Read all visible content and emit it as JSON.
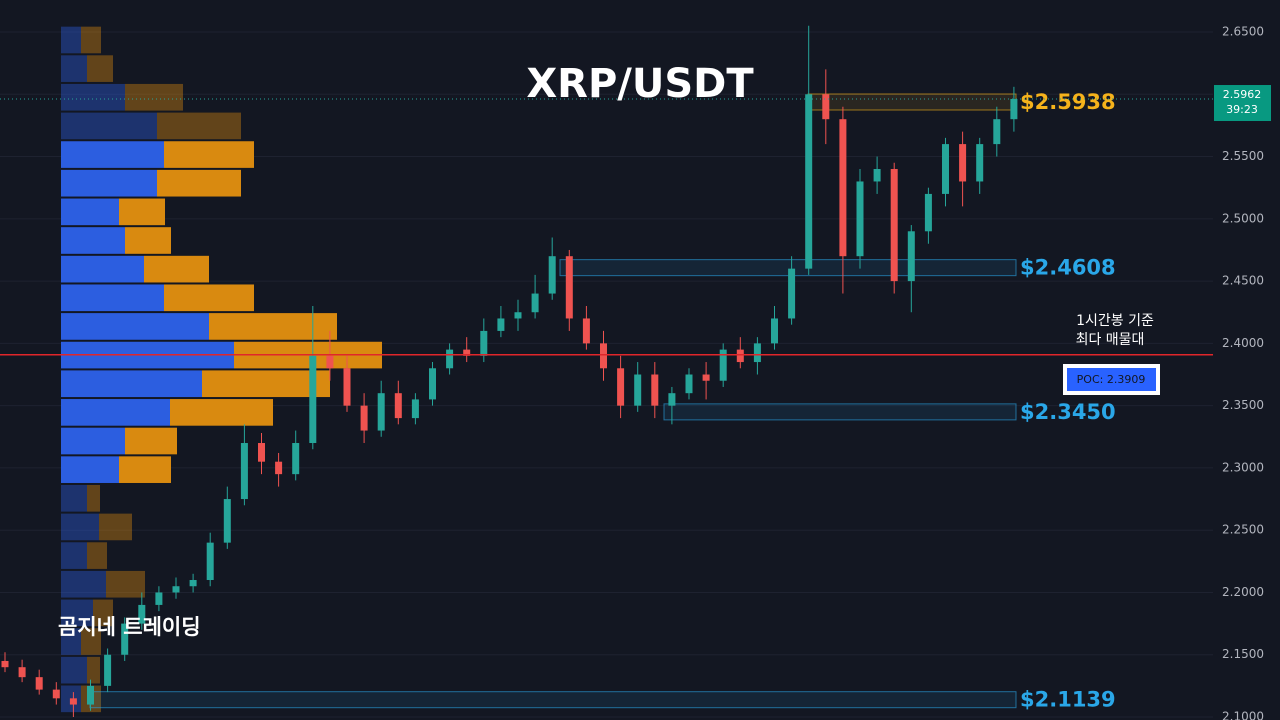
{
  "chart_data": {
    "type": "candlestick",
    "title": "XRP/USDT",
    "watermark": "곰지네 트레이딩",
    "up_color": "#26a69a",
    "down_color": "#ef5350",
    "ylim": [
      2.0976,
      2.6757
    ],
    "yticks": [
      {
        "value": 2.65,
        "label": "2.6500"
      },
      {
        "value": 2.6,
        "label": "2.6000"
      },
      {
        "value": 2.55,
        "label": "2.5500"
      },
      {
        "value": 2.5,
        "label": "2.5000"
      },
      {
        "value": 2.45,
        "label": "2.4500"
      },
      {
        "value": 2.4,
        "label": "2.4000"
      },
      {
        "value": 2.35,
        "label": "2.3500"
      },
      {
        "value": 2.3,
        "label": "2.3000"
      },
      {
        "value": 2.25,
        "label": "2.2500"
      },
      {
        "value": 2.2,
        "label": "2.2000"
      },
      {
        "value": 2.15,
        "label": "2.1500"
      },
      {
        "value": 2.1,
        "label": "2.1000"
      }
    ],
    "grid": true,
    "open": [
      2.145,
      2.14,
      2.132,
      2.122,
      2.115,
      2.11,
      2.125,
      2.15,
      2.175,
      2.19,
      2.2,
      2.205,
      2.21,
      2.24,
      2.275,
      2.32,
      2.305,
      2.295,
      2.32,
      2.39,
      2.38,
      2.35,
      2.33,
      2.36,
      2.34,
      2.355,
      2.38,
      2.395,
      2.39,
      2.41,
      2.42,
      2.425,
      2.44,
      2.47,
      2.42,
      2.4,
      2.38,
      2.35,
      2.375,
      2.35,
      2.36,
      2.375,
      2.37,
      2.395,
      2.385,
      2.4,
      2.42,
      2.46,
      2.6,
      2.58,
      2.47,
      2.53,
      2.54,
      2.45,
      2.49,
      2.52,
      2.56,
      2.53,
      2.56,
      2.58
    ],
    "high": [
      2.152,
      2.146,
      2.138,
      2.128,
      2.12,
      2.13,
      2.155,
      2.18,
      2.2,
      2.205,
      2.212,
      2.215,
      2.248,
      2.285,
      2.335,
      2.328,
      2.312,
      2.33,
      2.43,
      2.41,
      2.39,
      2.36,
      2.37,
      2.37,
      2.36,
      2.385,
      2.4,
      2.405,
      2.42,
      2.43,
      2.435,
      2.455,
      2.485,
      2.475,
      2.43,
      2.41,
      2.39,
      2.385,
      2.385,
      2.365,
      2.38,
      2.385,
      2.4,
      2.405,
      2.405,
      2.43,
      2.47,
      2.655,
      2.62,
      2.59,
      2.54,
      2.55,
      2.545,
      2.495,
      2.525,
      2.565,
      2.57,
      2.565,
      2.59,
      2.606
    ],
    "low": [
      2.136,
      2.128,
      2.118,
      2.11,
      2.1,
      2.105,
      2.12,
      2.145,
      2.17,
      2.185,
      2.195,
      2.2,
      2.205,
      2.235,
      2.27,
      2.295,
      2.285,
      2.29,
      2.315,
      2.37,
      2.345,
      2.32,
      2.325,
      2.335,
      2.335,
      2.35,
      2.375,
      2.385,
      2.385,
      2.405,
      2.41,
      2.42,
      2.435,
      2.41,
      2.395,
      2.37,
      2.34,
      2.345,
      2.34,
      2.335,
      2.355,
      2.355,
      2.365,
      2.38,
      2.375,
      2.395,
      2.415,
      2.455,
      2.56,
      2.44,
      2.46,
      2.52,
      2.44,
      2.425,
      2.48,
      2.51,
      2.51,
      2.52,
      2.55,
      2.57
    ],
    "close": [
      2.14,
      2.132,
      2.122,
      2.115,
      2.11,
      2.125,
      2.15,
      2.175,
      2.19,
      2.2,
      2.205,
      2.21,
      2.24,
      2.275,
      2.32,
      2.305,
      2.295,
      2.32,
      2.39,
      2.38,
      2.35,
      2.33,
      2.36,
      2.34,
      2.355,
      2.38,
      2.395,
      2.39,
      2.41,
      2.42,
      2.425,
      2.44,
      2.47,
      2.42,
      2.4,
      2.38,
      2.35,
      2.375,
      2.35,
      2.36,
      2.375,
      2.37,
      2.395,
      2.385,
      2.4,
      2.42,
      2.46,
      2.6,
      2.58,
      2.47,
      2.53,
      2.54,
      2.45,
      2.49,
      2.52,
      2.56,
      2.53,
      2.56,
      2.58,
      2.5962
    ],
    "profile": {
      "levels": [
        2.6436,
        2.6206,
        2.5976,
        2.5746,
        2.5516,
        2.5286,
        2.5056,
        2.4826,
        2.4596,
        2.4366,
        2.4136,
        2.3906,
        2.3676,
        2.3446,
        2.3216,
        2.2986,
        2.2756,
        2.2526,
        2.2296,
        2.2066,
        2.1836,
        2.1606,
        2.1376,
        2.1146
      ],
      "buy": [
        20,
        26,
        64,
        96,
        103,
        96,
        58,
        64,
        83,
        103,
        148,
        173,
        141,
        109,
        64,
        58,
        26,
        38,
        26,
        45,
        32,
        20,
        26,
        20
      ],
      "sell": [
        20,
        26,
        58,
        84,
        90,
        84,
        46,
        46,
        65,
        90,
        128,
        148,
        128,
        103,
        52,
        52,
        13,
        33,
        20,
        39,
        20,
        20,
        13,
        20
      ],
      "buy_color": "#2c5ee0",
      "sell_color": "#d98a10",
      "value_area": [
        2.2986,
        2.5516
      ]
    },
    "levels": [
      {
        "value": 2.5938,
        "label": "$2.5938",
        "color": "#f5b21b"
      },
      {
        "value": 2.4608,
        "label": "$2.4608",
        "color": "#2aa7e8"
      },
      {
        "value": 2.345,
        "label": "$2.3450",
        "color": "#2aa7e8"
      },
      {
        "value": 2.1139,
        "label": "$2.1139",
        "color": "#2aa7e8"
      }
    ],
    "poc": {
      "value": 2.3909,
      "label": "POC: 2.3909"
    },
    "annotation": [
      "1시간봉 기준",
      "최다 매물대"
    ],
    "last_price": 2.5962,
    "timer": "39:23"
  }
}
